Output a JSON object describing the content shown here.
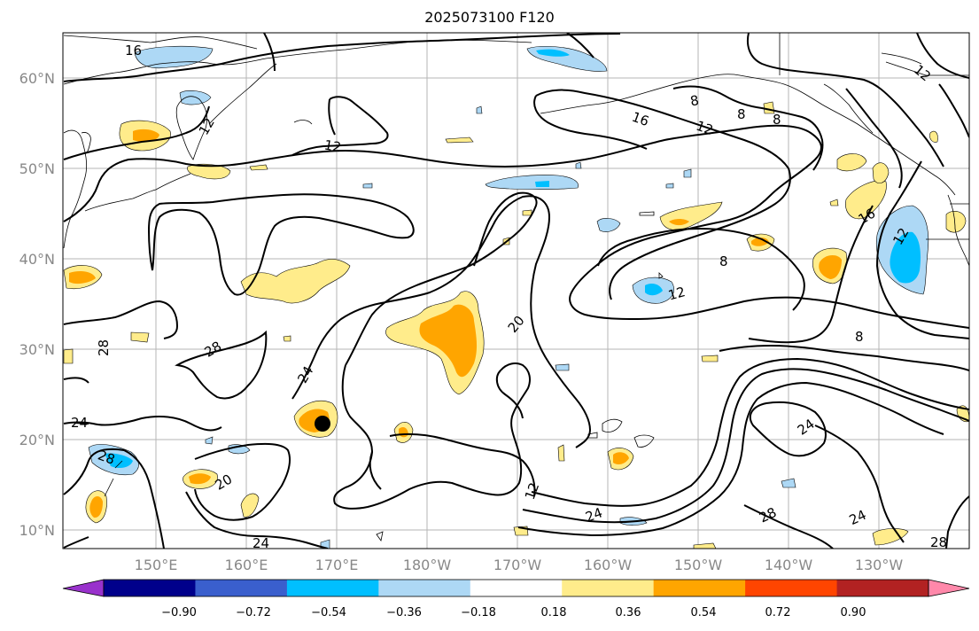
{
  "title": "2025073100 F120",
  "map": {
    "lat_ticks": [
      "60°N",
      "50°N",
      "40°N",
      "30°N",
      "20°N",
      "10°N"
    ],
    "lon_ticks": [
      "150°E",
      "160°E",
      "170°E",
      "180°W",
      "170°W",
      "160°W",
      "150°W",
      "140°W",
      "130°W"
    ]
  },
  "contour_labels": [
    "16",
    "12",
    "12",
    "12",
    "8",
    "8",
    "8",
    "16",
    "12",
    "16",
    "12",
    "8",
    "12",
    "8",
    "20",
    "24",
    "28",
    "28",
    "24",
    "28",
    "20",
    "24",
    "12",
    "24",
    "28",
    "24",
    "24",
    "28"
  ],
  "colorbar": {
    "colors": [
      "#9932cc",
      "#00008b",
      "#3a5fcd",
      "#00bfff",
      "#add8f5",
      "#ffffff",
      "#ffec8b",
      "#ffa500",
      "#ff4500",
      "#b22222",
      "#ff88aa"
    ],
    "ticks": [
      "−0.90",
      "−0.72",
      "−0.54",
      "−0.36",
      "−0.18",
      "0.18",
      "0.36",
      "0.54",
      "0.72",
      "0.90"
    ]
  }
}
